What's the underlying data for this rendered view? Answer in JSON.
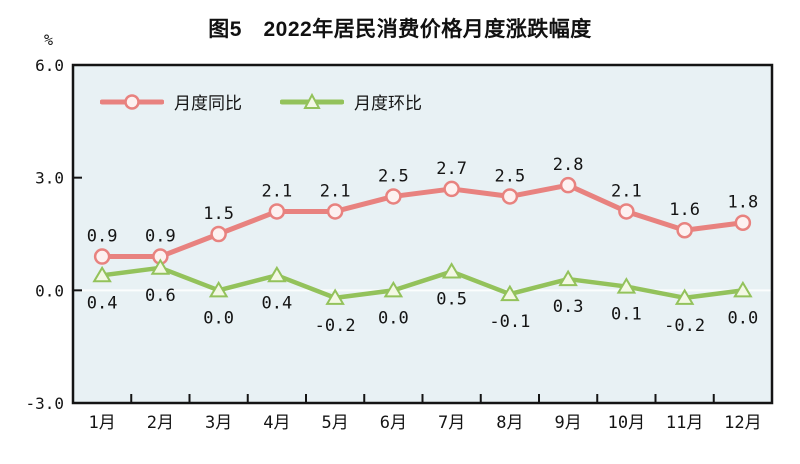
{
  "chart_data": {
    "type": "line",
    "title": "图5　2022年居民消费价格月度涨跌幅度",
    "ylabel": "%",
    "xlabel": "",
    "categories": [
      "1月",
      "2月",
      "3月",
      "4月",
      "5月",
      "6月",
      "7月",
      "8月",
      "9月",
      "10月",
      "11月",
      "12月"
    ],
    "series": [
      {
        "key": "yoy",
        "name": "月度同比",
        "marker": "circle",
        "color": "#e8827f",
        "marker_fill": "#fdf1f0",
        "line_width": 5,
        "values": [
          0.9,
          0.9,
          1.5,
          2.1,
          2.1,
          2.5,
          2.7,
          2.5,
          2.8,
          2.1,
          1.6,
          1.8
        ],
        "labels": [
          "0.9",
          "0.9",
          "1.5",
          "2.1",
          "2.1",
          "2.5",
          "2.7",
          "2.5",
          "2.8",
          "2.1",
          "1.6",
          "1.8"
        ],
        "label_side": "above"
      },
      {
        "key": "mom",
        "name": "月度环比",
        "marker": "triangle",
        "color": "#93c25b",
        "marker_fill": "#f3f8e4",
        "line_width": 4.5,
        "values": [
          0.4,
          0.6,
          0.0,
          0.4,
          -0.2,
          0.0,
          0.5,
          -0.1,
          0.3,
          0.1,
          -0.2,
          0.0
        ],
        "labels": [
          "0.4",
          "0.6",
          "0.0",
          "0.4",
          "-0.2",
          "0.0",
          "0.5",
          "-0.1",
          "0.3",
          "0.1",
          "-0.2",
          "0.0"
        ],
        "label_side": "below"
      }
    ],
    "ylim": [
      -3.0,
      6.0
    ],
    "yticks": [
      6.0,
      3.0,
      0.0,
      -3.0
    ],
    "ytick_labels": [
      "6.0",
      "3.0",
      "0.0",
      "-3.0"
    ],
    "legend_position": "inside-top-left",
    "grid": "zero-line-only",
    "colors": {
      "plot_bg": "#e8f1f4",
      "border": "#141414",
      "zero_line": "#fbfdfd",
      "text": "#141414"
    }
  }
}
